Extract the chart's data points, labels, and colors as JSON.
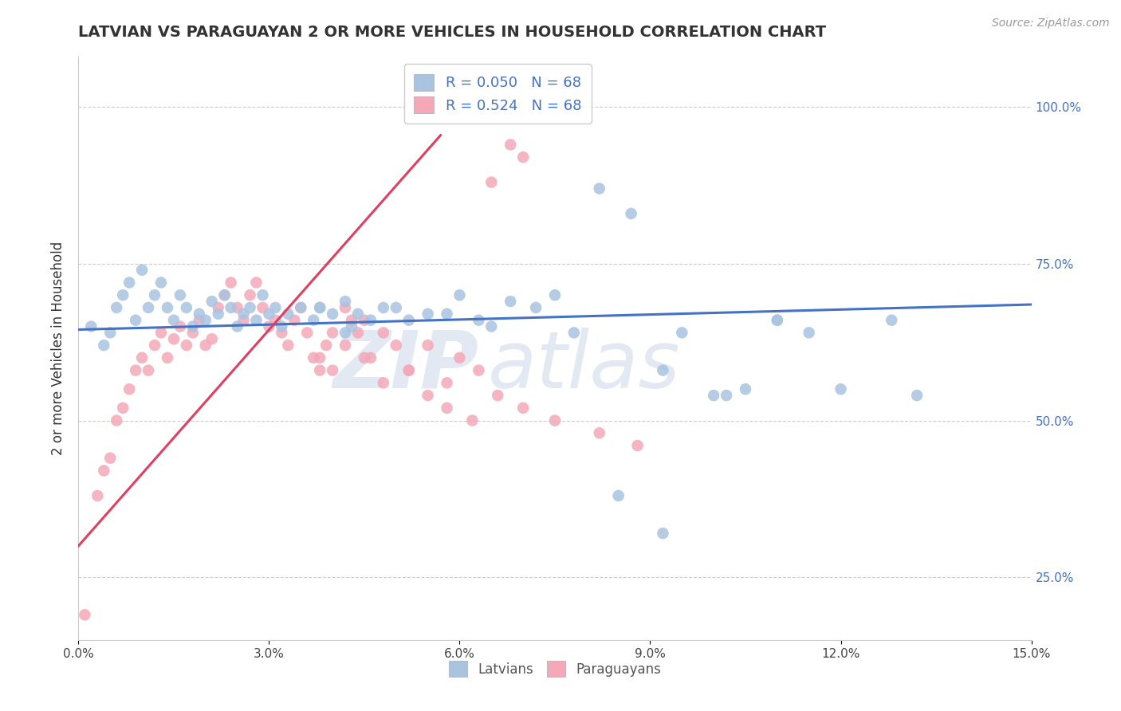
{
  "title": "LATVIAN VS PARAGUAYAN 2 OR MORE VEHICLES IN HOUSEHOLD CORRELATION CHART",
  "source_text": "Source: ZipAtlas.com",
  "ylabel": "2 or more Vehicles in Household",
  "xlim": [
    0.0,
    0.15
  ],
  "ylim": [
    0.15,
    1.08
  ],
  "yticks": [
    0.25,
    0.5,
    0.75,
    1.0
  ],
  "ytick_labels": [
    "25.0%",
    "50.0%",
    "75.0%",
    "100.0%"
  ],
  "xticks": [
    0.0,
    0.03,
    0.06,
    0.09,
    0.12,
    0.15
  ],
  "xtick_labels": [
    "0.0%",
    "3.0%",
    "6.0%",
    "9.0%",
    "12.0%",
    "15.0%"
  ],
  "latvian_color": "#a8c4e0",
  "paraguayan_color": "#f4a8b8",
  "latvian_line_color": "#4472c4",
  "paraguayan_line_color": "#e04060",
  "legend_text_color": "#4472c4",
  "title_fontsize": 14,
  "axis_label_fontsize": 12,
  "tick_fontsize": 11,
  "latvian_x": [
    0.002,
    0.004,
    0.005,
    0.006,
    0.007,
    0.008,
    0.009,
    0.01,
    0.011,
    0.012,
    0.013,
    0.014,
    0.015,
    0.016,
    0.017,
    0.018,
    0.019,
    0.02,
    0.021,
    0.022,
    0.023,
    0.024,
    0.025,
    0.026,
    0.027,
    0.028,
    0.029,
    0.03,
    0.031,
    0.032,
    0.033,
    0.035,
    0.037,
    0.038,
    0.04,
    0.042,
    0.043,
    0.044,
    0.046,
    0.05,
    0.055,
    0.06,
    0.063,
    0.068,
    0.075,
    0.082,
    0.087,
    0.092,
    0.095,
    0.1,
    0.105,
    0.11,
    0.115,
    0.12,
    0.128,
    0.132,
    0.038,
    0.042,
    0.048,
    0.052,
    0.058,
    0.065,
    0.072,
    0.078,
    0.085,
    0.092,
    0.102,
    0.11
  ],
  "latvian_y": [
    0.65,
    0.62,
    0.64,
    0.68,
    0.7,
    0.72,
    0.66,
    0.74,
    0.68,
    0.7,
    0.72,
    0.68,
    0.66,
    0.7,
    0.68,
    0.65,
    0.67,
    0.66,
    0.69,
    0.67,
    0.7,
    0.68,
    0.65,
    0.67,
    0.68,
    0.66,
    0.7,
    0.67,
    0.68,
    0.65,
    0.67,
    0.68,
    0.66,
    0.68,
    0.67,
    0.69,
    0.65,
    0.67,
    0.66,
    0.68,
    0.67,
    0.7,
    0.66,
    0.69,
    0.7,
    0.87,
    0.83,
    0.58,
    0.64,
    0.54,
    0.55,
    0.66,
    0.64,
    0.55,
    0.66,
    0.54,
    0.68,
    0.64,
    0.68,
    0.66,
    0.67,
    0.65,
    0.68,
    0.64,
    0.38,
    0.32,
    0.54,
    0.66
  ],
  "paraguayan_x": [
    0.001,
    0.003,
    0.004,
    0.005,
    0.006,
    0.007,
    0.008,
    0.009,
    0.01,
    0.011,
    0.012,
    0.013,
    0.014,
    0.015,
    0.016,
    0.017,
    0.018,
    0.019,
    0.02,
    0.021,
    0.022,
    0.023,
    0.024,
    0.025,
    0.026,
    0.027,
    0.028,
    0.029,
    0.03,
    0.031,
    0.032,
    0.033,
    0.034,
    0.035,
    0.036,
    0.037,
    0.038,
    0.039,
    0.04,
    0.042,
    0.043,
    0.044,
    0.045,
    0.046,
    0.048,
    0.05,
    0.052,
    0.055,
    0.058,
    0.06,
    0.063,
    0.065,
    0.068,
    0.07,
    0.038,
    0.04,
    0.042,
    0.045,
    0.048,
    0.052,
    0.055,
    0.058,
    0.062,
    0.066,
    0.07,
    0.075,
    0.082,
    0.088
  ],
  "paraguayan_y": [
    0.19,
    0.38,
    0.42,
    0.44,
    0.5,
    0.52,
    0.55,
    0.58,
    0.6,
    0.58,
    0.62,
    0.64,
    0.6,
    0.63,
    0.65,
    0.62,
    0.64,
    0.66,
    0.62,
    0.63,
    0.68,
    0.7,
    0.72,
    0.68,
    0.66,
    0.7,
    0.72,
    0.68,
    0.65,
    0.66,
    0.64,
    0.62,
    0.66,
    0.68,
    0.64,
    0.6,
    0.58,
    0.62,
    0.64,
    0.68,
    0.66,
    0.64,
    0.66,
    0.6,
    0.64,
    0.62,
    0.58,
    0.62,
    0.56,
    0.6,
    0.58,
    0.88,
    0.94,
    0.92,
    0.6,
    0.58,
    0.62,
    0.6,
    0.56,
    0.58,
    0.54,
    0.52,
    0.5,
    0.54,
    0.52,
    0.5,
    0.48,
    0.46
  ],
  "blue_trend_x0": 0.0,
  "blue_trend_y0": 0.645,
  "blue_trend_x1": 0.15,
  "blue_trend_y1": 0.685,
  "pink_trend_x0": 0.0,
  "pink_trend_y0": 0.3,
  "pink_trend_x1": 0.057,
  "pink_trend_y1": 0.955
}
